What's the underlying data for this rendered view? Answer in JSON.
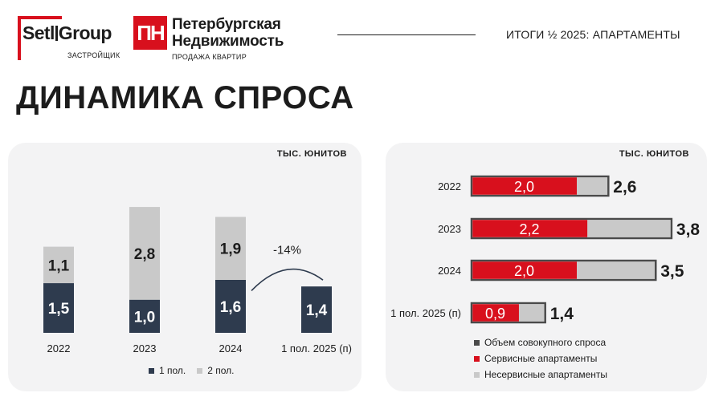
{
  "header": {
    "logo1": {
      "name": "Setl",
      "name2": "Group",
      "sub": "ЗАСТРОЙЩИК"
    },
    "logo2": {
      "mark": "ПН",
      "line1": "Петербургская",
      "line2": "Недвижимость",
      "sub": "ПРОДАЖА КВАРТИР"
    },
    "tag": "ИТОГИ ½ 2025: АПАРТАМЕНТЫ"
  },
  "title": "ДИНАМИКА СПРОСА",
  "colors": {
    "dark": "#2e3b4e",
    "light": "#c9c9c9",
    "red": "#d8101d",
    "total": "#4a4a4a",
    "brand_red": "#d8101d"
  },
  "chart_data": [
    {
      "type": "bar",
      "stacked": true,
      "unit_label": "ТЫС. ЮНИТОВ",
      "categories": [
        "2022",
        "2023",
        "2024",
        "1 пол. 2025 (п)"
      ],
      "series": [
        {
          "name": "1 пол.",
          "values": [
            1.5,
            1.0,
            1.6,
            1.4
          ],
          "labels": [
            "1,5",
            "1,0",
            "1,6",
            "1,4"
          ],
          "color": "#2e3b4e"
        },
        {
          "name": "2 пол.",
          "values": [
            1.1,
            2.8,
            1.9,
            null
          ],
          "labels": [
            "1,1",
            "2,8",
            "1,9",
            ""
          ],
          "color": "#c9c9c9"
        }
      ],
      "annotation": "-14%",
      "legend": "bottom"
    },
    {
      "type": "bar",
      "orientation": "horizontal",
      "unit_label": "ТЫС. ЮНИТОВ",
      "categories": [
        "2022",
        "2023",
        "2024",
        "1 пол. 2025 (п)"
      ],
      "series": [
        {
          "name": "Объем совокупного спроса",
          "values": [
            2.6,
            3.8,
            3.5,
            1.4
          ],
          "labels": [
            "2,6",
            "3,8",
            "3,5",
            "1,4"
          ],
          "color": "#4a4a4a"
        },
        {
          "name": "Сервисные апартаменты",
          "values": [
            2.0,
            2.2,
            2.0,
            0.9
          ],
          "labels": [
            "2,0",
            "2,2",
            "2,0",
            "0,9"
          ],
          "color": "#d8101d"
        },
        {
          "name": "Несервисные апартаменты",
          "values": [
            0.6,
            1.6,
            1.5,
            0.5
          ],
          "color": "#c9c9c9"
        }
      ],
      "legend": "bottom"
    }
  ]
}
